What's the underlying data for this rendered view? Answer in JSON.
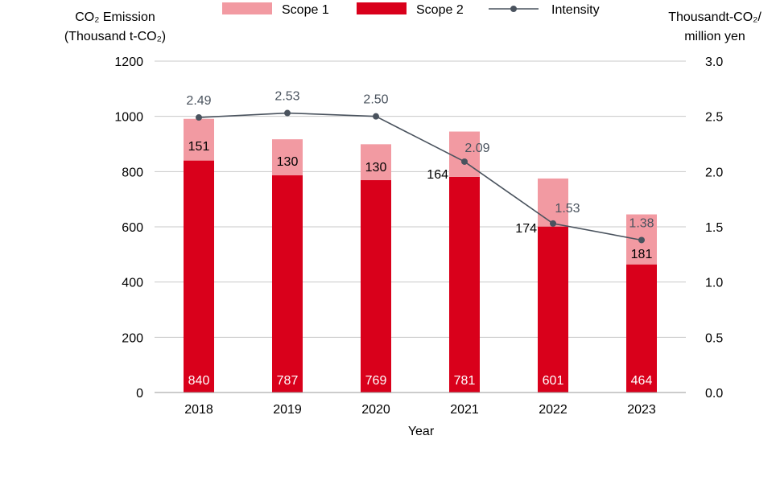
{
  "chart_data": {
    "type": "bar",
    "categories": [
      "2018",
      "2019",
      "2020",
      "2021",
      "2022",
      "2023"
    ],
    "series": [
      {
        "name": "Scope 1",
        "type": "bar",
        "stack": "emission",
        "axis": "left",
        "values": [
          151,
          130,
          130,
          164,
          174,
          181
        ]
      },
      {
        "name": "Scope 2",
        "type": "bar",
        "stack": "emission",
        "axis": "left",
        "values": [
          840,
          787,
          769,
          781,
          601,
          464
        ]
      },
      {
        "name": "Intensity",
        "type": "line",
        "axis": "right",
        "values": [
          2.49,
          2.53,
          2.5,
          2.09,
          1.53,
          1.38
        ]
      }
    ],
    "xlabel": "Year",
    "ylabel_left": [
      "CO₂ Emission",
      "(Thousand t-CO₂)"
    ],
    "ylabel_right": [
      "Thousandt-CO₂/",
      "million yen"
    ],
    "ylim_left": [
      0,
      1200
    ],
    "yticks_left": [
      "0",
      "200",
      "400",
      "600",
      "800",
      "1000",
      "1200"
    ],
    "ylim_right": [
      0,
      3.0
    ],
    "yticks_right": [
      "0.0",
      "0.5",
      "1.0",
      "1.5",
      "2.0",
      "2.5",
      "3.0"
    ],
    "intensity_labels": [
      "2.49",
      "2.53",
      "2.50",
      "2.09",
      "1.53",
      "1.38"
    ],
    "grid": true,
    "legend_position": "top-center",
    "colors": {
      "Scope 1": "#f29aa2",
      "Scope 2": "#d9001b",
      "Intensity": "#4a535e",
      "grid": "#c8c8c8"
    }
  }
}
